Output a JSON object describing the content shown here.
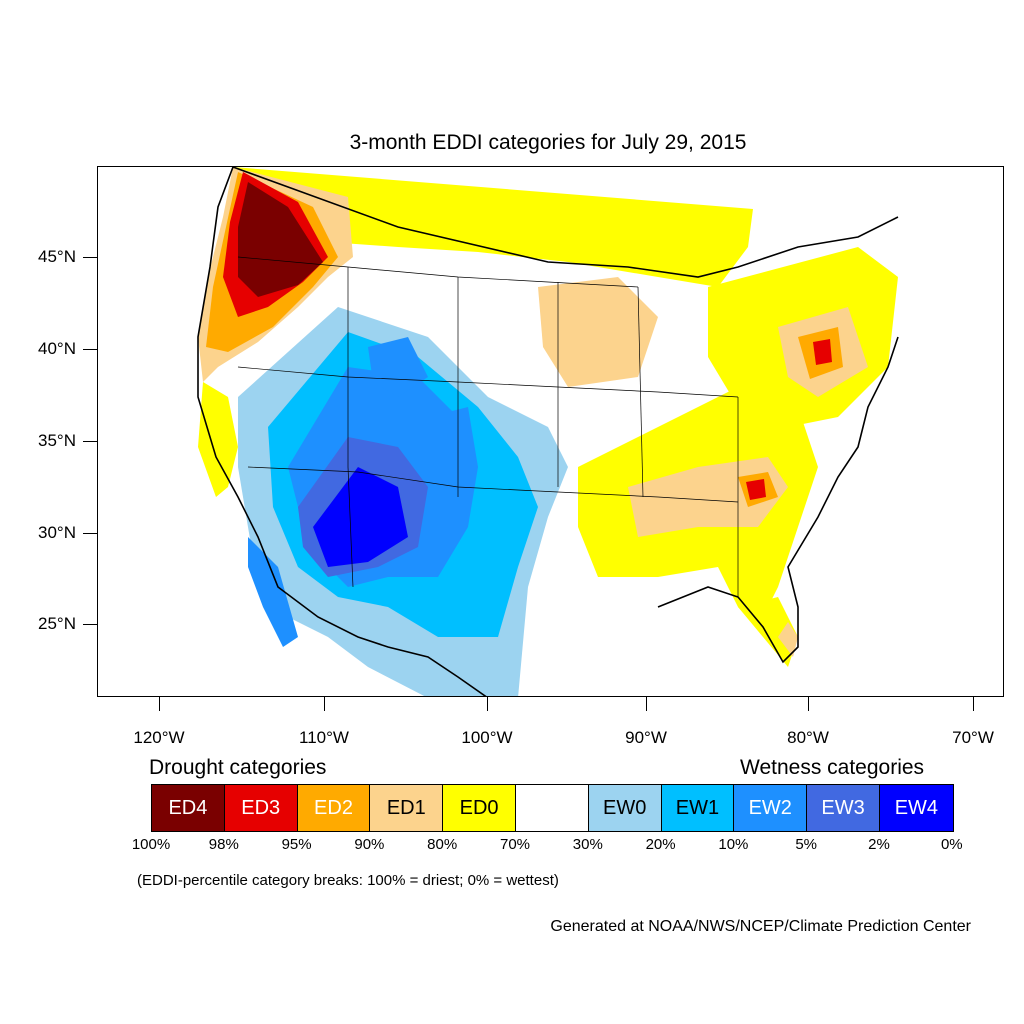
{
  "title": "3-month EDDI categories for July 29, 2015",
  "axes": {
    "lat_labels": [
      "45°N",
      "40°N",
      "35°N",
      "30°N",
      "25°N"
    ],
    "lon_labels": [
      "120°W",
      "110°W",
      "100°W",
      "90°W",
      "80°W",
      "70°W"
    ]
  },
  "legend": {
    "drought_heading": "Drought categories",
    "wetness_heading": "Wetness categories",
    "categories": [
      {
        "label": "ED4",
        "color": "#7a0000",
        "text_color": "#ffffff"
      },
      {
        "label": "ED3",
        "color": "#e60000",
        "text_color": "#ffffff"
      },
      {
        "label": "ED2",
        "color": "#ffaa00",
        "text_color": "#ffffff"
      },
      {
        "label": "ED1",
        "color": "#fcd38d",
        "text_color": "#000000"
      },
      {
        "label": "ED0",
        "color": "#ffff00",
        "text_color": "#000000"
      },
      {
        "label": "",
        "color": "#ffffff",
        "text_color": "#000000"
      },
      {
        "label": "EW0",
        "color": "#9cd3f0",
        "text_color": "#000000"
      },
      {
        "label": "EW1",
        "color": "#00bfff",
        "text_color": "#000000"
      },
      {
        "label": "EW2",
        "color": "#1e90ff",
        "text_color": "#ffffff"
      },
      {
        "label": "EW3",
        "color": "#4169e1",
        "text_color": "#ffffff"
      },
      {
        "label": "EW4",
        "color": "#0000ff",
        "text_color": "#ffffff"
      }
    ],
    "percent_breaks": [
      "100%",
      "98%",
      "95%",
      "90%",
      "80%",
      "70%",
      "30%",
      "20%",
      "10%",
      "5%",
      "2%",
      "0%"
    ]
  },
  "note": "(EDDI-percentile category breaks: 100% = driest; 0% = wettest)",
  "credit": "Generated at NOAA/NWS/NCEP/Climate Prediction Center"
}
